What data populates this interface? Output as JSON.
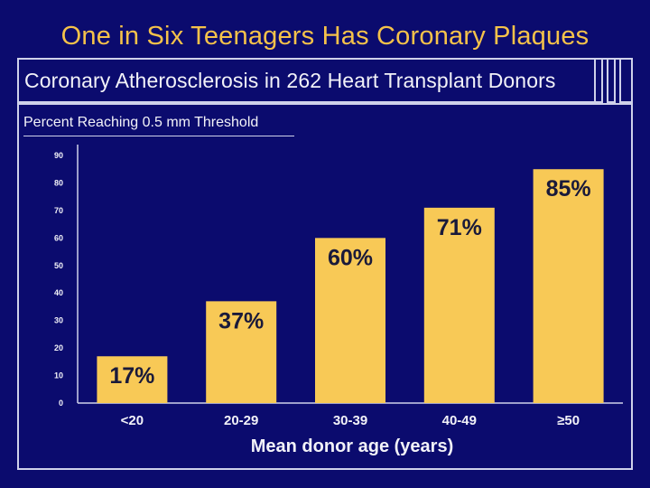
{
  "slide_title": "One in Six Teenagers Has Coronary Plaques",
  "colors": {
    "background": "#0b0b6e",
    "bar": "#f8c956",
    "title": "#f5c24a",
    "text": "#f2f2f8"
  },
  "chart_data": {
    "type": "bar",
    "title": "Coronary Atherosclerosis in 262 Heart Transplant Donors",
    "ylabel": "Percent Reaching 0.5 mm Threshold",
    "xlabel": "Mean donor age (years)",
    "categories": [
      "<20",
      "20-29",
      "30-39",
      "40-49",
      "≥50"
    ],
    "values": [
      17,
      37,
      60,
      71,
      85
    ],
    "value_labels": [
      "17%",
      "37%",
      "60%",
      "71%",
      "85%"
    ],
    "ylim": [
      0,
      90
    ],
    "yticks": [
      0,
      10,
      20,
      30,
      40,
      50,
      60,
      70,
      80,
      90
    ],
    "grid": false
  }
}
